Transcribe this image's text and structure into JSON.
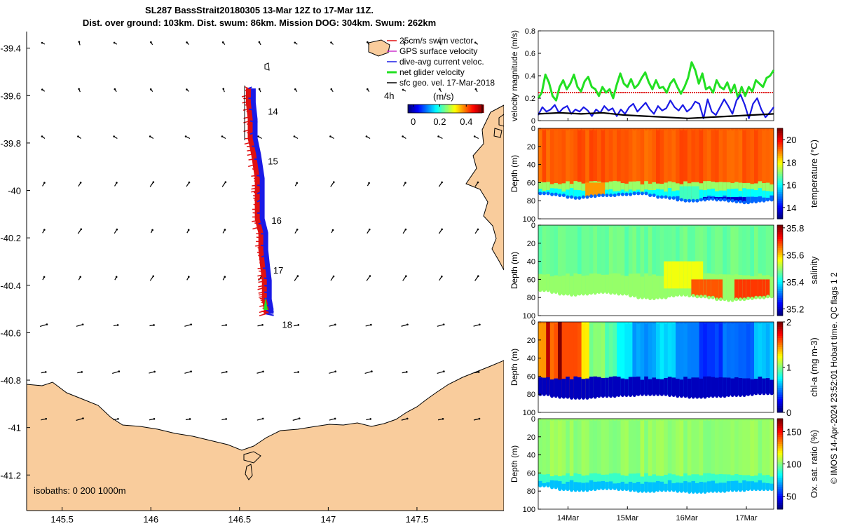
{
  "title": {
    "line1": "SL287 BassStrait20180305 13-Mar 12Z to 17-Mar 11Z.",
    "line2": "Dist. over ground: 103km. Dist. swum: 86km. Mission DOG: 304km. Swum: 262km"
  },
  "side_note": "© IMOS 14-Apr-2024 23:52:01 Hobart time. QC flags 1  2",
  "colors": {
    "land": "#f9cc9c",
    "swim": "#e01010",
    "dac": "#1a1ae6",
    "net": "#22e022",
    "ref": "#e01010",
    "gps": "#cc33cc",
    "sfc": "#000000"
  },
  "chart_data": [
    {
      "type": "map",
      "x_ticks": [
        "145.5",
        "146",
        "146.5",
        "147",
        "147.5"
      ],
      "x_values": [
        145.5,
        146,
        146.5,
        147,
        147.5
      ],
      "xlim": [
        145.3,
        147.99
      ],
      "y_ticks": [
        "-39.4",
        "-39.6",
        "-39.8",
        "-40",
        "-40.2",
        "-40.4",
        "-40.6",
        "-40.8",
        "-41",
        "-41.2"
      ],
      "y_values": [
        -39.4,
        -39.6,
        -39.8,
        -40.0,
        -40.2,
        -40.4,
        -40.6,
        -40.8,
        -41.0,
        -41.2
      ],
      "ylim": [
        -41.35,
        -39.33
      ],
      "day_labels": [
        {
          "text": "14",
          "lon": 146.66,
          "lat": -39.68
        },
        {
          "text": "15",
          "lon": 146.66,
          "lat": -39.89
        },
        {
          "text": "16",
          "lon": 146.68,
          "lat": -40.14
        },
        {
          "text": "17",
          "lon": 146.69,
          "lat": -40.35
        },
        {
          "text": "18",
          "lon": 146.74,
          "lat": -40.58
        }
      ],
      "track": {
        "lon": [
          146.55,
          146.55,
          146.56,
          146.56,
          146.58,
          146.6,
          146.6,
          146.6,
          146.6,
          146.62,
          146.62,
          146.63,
          146.64,
          146.64,
          146.64,
          146.65,
          146.65
        ],
        "lat": [
          -39.57,
          -39.63,
          -39.7,
          -39.78,
          -39.85,
          -39.95,
          -40.0,
          -40.05,
          -40.12,
          -40.18,
          -40.25,
          -40.32,
          -40.38,
          -40.42,
          -40.46,
          -40.5,
          -40.52
        ]
      },
      "legend": [
        "25cm/s swim vector",
        "GPS surface velocity",
        "dive-avg current veloc.",
        "net glider velocity",
        "sfc geo. vel. 17-Mar-2018"
      ],
      "legend_4h": "4h",
      "colorbar_title": "(m/s)",
      "colorbar_ticks": [
        "0",
        "0.2",
        "0.4"
      ],
      "colorbar_values": [
        0,
        0.2,
        0.4
      ],
      "colorbar_range": [
        -0.04,
        0.52
      ],
      "isobaths": "isobaths: 0   200  1000m"
    },
    {
      "type": "line",
      "ylabel": "velocity magnitude (m/s)",
      "ylim": [
        0,
        0.8
      ],
      "y_ticks": [
        "0",
        "0.2",
        "0.4",
        "0.6",
        "0.8"
      ],
      "y_values": [
        0,
        0.2,
        0.4,
        0.6,
        0.8
      ],
      "xlim": [
        13.5,
        17.46
      ],
      "series": [
        {
          "name": "net glider velocity",
          "values": [
            0.2,
            0.25,
            0.41,
            0.34,
            0.22,
            0.18,
            0.3,
            0.36,
            0.28,
            0.33,
            0.41,
            0.3,
            0.26,
            0.35,
            0.39,
            0.3,
            0.28,
            0.22,
            0.3,
            0.25,
            0.28,
            0.2,
            0.32,
            0.42,
            0.33,
            0.3,
            0.37,
            0.29,
            0.32,
            0.38,
            0.43,
            0.34,
            0.28,
            0.36,
            0.29,
            0.3,
            0.25,
            0.33,
            0.37,
            0.3,
            0.24,
            0.3,
            0.38,
            0.52,
            0.45,
            0.33,
            0.42,
            0.28,
            0.3,
            0.25,
            0.36,
            0.3,
            0.28,
            0.34,
            0.25,
            0.32,
            0.2,
            0.3,
            0.22,
            0.3,
            0.26,
            0.36,
            0.33,
            0.3,
            0.38,
            0.4,
            0.45
          ]
        },
        {
          "name": "dive-avg current veloc.",
          "values": [
            0.05,
            0.12,
            0.08,
            0.1,
            0.14,
            0.07,
            0.11,
            0.13,
            0.06,
            0.1,
            0.08,
            0.12,
            0.09,
            0.04,
            0.1,
            0.07,
            0.13,
            0.09,
            0.11,
            0.04,
            0.1,
            0.06,
            0.12,
            0.15,
            0.08,
            0.12,
            0.16,
            0.1,
            0.06,
            0.13,
            0.09,
            0.11,
            0.18,
            0.12,
            0.09,
            0.14,
            0.08,
            0.11,
            0.17,
            0.15,
            0.02,
            0.19,
            0.08,
            0.05,
            0.12,
            0.19,
            0.13,
            0.06,
            0.18,
            0.23,
            0.14,
            0.02,
            0.15,
            0.2,
            0.1,
            0.03,
            0.07,
            0.12
          ]
        },
        {
          "name": "sfc geo. vel.",
          "values": [
            0.06,
            0.07,
            0.06,
            0.07,
            0.05,
            0.04,
            0.03,
            0.02,
            0.03,
            0.04,
            0.05,
            0.06
          ]
        }
      ],
      "reference_line": 0.25
    },
    {
      "type": "heatmap",
      "ylabel": "Depth (m)",
      "ylim": [
        0,
        100
      ],
      "y_ticks": [
        "0",
        "20",
        "40",
        "60",
        "80",
        "100"
      ],
      "y_values": [
        0,
        20,
        40,
        60,
        80,
        100
      ],
      "colorbar_label": "temperature (°C)",
      "colorbar_ticks": [
        "14",
        "16",
        "18",
        "20"
      ],
      "colorbar_values": [
        14,
        16,
        18,
        20
      ],
      "crange": [
        13,
        21
      ],
      "surface_value": 19.3,
      "floor_depths": [
        72,
        73,
        74,
        76,
        77,
        76,
        75,
        74,
        74,
        73,
        73,
        72,
        72,
        74,
        76,
        77,
        79,
        80,
        80,
        79,
        78,
        79,
        80,
        81,
        82,
        81,
        80,
        79
      ],
      "layers": [
        {
          "top": 60,
          "value": 17.2
        },
        {
          "top": 68,
          "value": 16.0
        },
        {
          "top": 76,
          "value": 14.8
        }
      ],
      "patches": [
        {
          "x0": 14.3,
          "x1": 14.6,
          "top": 60,
          "value": 18.8
        },
        {
          "x0": 15.9,
          "x1": 16.2,
          "top": 64,
          "value": 16.5
        },
        {
          "x0": 16.3,
          "x1": 17.0,
          "top": 76,
          "value": 13.6
        }
      ]
    },
    {
      "type": "heatmap",
      "ylabel": "Depth (m)",
      "ylim": [
        0,
        100
      ],
      "y_ticks": [
        "0",
        "20",
        "40",
        "60",
        "80",
        "100"
      ],
      "y_values": [
        0,
        20,
        40,
        60,
        80,
        100
      ],
      "colorbar_label": "salinity",
      "colorbar_ticks": [
        "35.2",
        "35.4",
        "35.6",
        "35.8"
      ],
      "colorbar_values": [
        35.2,
        35.4,
        35.6,
        35.8
      ],
      "crange": [
        35.15,
        35.82
      ],
      "surface_value": 35.47,
      "floor_depths": [
        72,
        74,
        76,
        77,
        76,
        75,
        74,
        75,
        76,
        78,
        80,
        81,
        80,
        78,
        77,
        78,
        79,
        80,
        82,
        83,
        82,
        81,
        80,
        79
      ],
      "layers": [
        {
          "top": 55,
          "value": 35.5
        }
      ],
      "patches": [
        {
          "x0": 15.6,
          "x1": 16.3,
          "top": 40,
          "value": 35.56
        },
        {
          "x0": 16.1,
          "x1": 16.6,
          "top": 60,
          "value": 35.68
        },
        {
          "x0": 16.8,
          "x1": 17.4,
          "top": 60,
          "value": 35.7
        }
      ]
    },
    {
      "type": "heatmap",
      "ylabel": "Depth (m)",
      "ylim": [
        0,
        100
      ],
      "y_ticks": [
        "0",
        "20",
        "40",
        "60",
        "80",
        "100"
      ],
      "y_values": [
        0,
        20,
        40,
        60,
        80,
        100
      ],
      "colorbar_label": "chl-a (mg m-3)",
      "colorbar_ticks": [
        "0",
        "1",
        "2"
      ],
      "colorbar_values": [
        0,
        1,
        2
      ],
      "crange": [
        0,
        2
      ],
      "surface_value": 0.9,
      "floor_depths": [
        80,
        82,
        83,
        84,
        84,
        83,
        82,
        82,
        81,
        81,
        80,
        80,
        80,
        81,
        82,
        83,
        83,
        82,
        82,
        81,
        81,
        80,
        79,
        79
      ],
      "layers": [
        {
          "top": 62,
          "value": 0.12
        }
      ],
      "columns": [
        {
          "x0": 13.5,
          "x1": 13.62,
          "value": 1.5
        },
        {
          "x0": 13.62,
          "x1": 13.7,
          "value": 1.9
        },
        {
          "x0": 13.7,
          "x1": 13.8,
          "value": 1.55
        },
        {
          "x0": 13.8,
          "x1": 13.9,
          "value": 2.0
        },
        {
          "x0": 13.9,
          "x1": 14.25,
          "value": 1.6
        },
        {
          "x0": 14.25,
          "x1": 14.35,
          "value": 1.25
        },
        {
          "x0": 14.35,
          "x1": 14.6,
          "value": 1.0
        },
        {
          "x0": 14.6,
          "x1": 14.8,
          "value": 0.9
        },
        {
          "x0": 14.8,
          "x1": 15.1,
          "value": 0.75
        },
        {
          "x0": 15.1,
          "x1": 15.5,
          "value": 0.55
        },
        {
          "x0": 15.5,
          "x1": 15.8,
          "value": 0.7
        },
        {
          "x0": 15.8,
          "x1": 16.2,
          "value": 0.5
        },
        {
          "x0": 16.2,
          "x1": 16.6,
          "value": 0.35
        },
        {
          "x0": 16.6,
          "x1": 17.1,
          "value": 0.45
        },
        {
          "x0": 17.1,
          "x1": 17.46,
          "value": 0.62
        }
      ]
    },
    {
      "type": "heatmap",
      "ylabel": "Depth (m)",
      "ylim": [
        0,
        100
      ],
      "y_ticks": [
        "0",
        "20",
        "40",
        "60",
        "80",
        "100"
      ],
      "y_values": [
        0,
        20,
        40,
        60,
        80,
        100
      ],
      "x_ticks": [
        "14Mar",
        "15Mar",
        "16Mar",
        "17Mar"
      ],
      "x_values": [
        14,
        15,
        16,
        17
      ],
      "xlim": [
        13.5,
        17.46
      ],
      "colorbar_label": "Ox. sat. ratio (%)",
      "colorbar_ticks": [
        "50",
        "100",
        "150"
      ],
      "colorbar_values": [
        50,
        100,
        150
      ],
      "crange": [
        30,
        170
      ],
      "surface_value": 103,
      "floor_depths": [
        74,
        76,
        78,
        79,
        79,
        78,
        77,
        77,
        78,
        79,
        80,
        80,
        79,
        79,
        80,
        81,
        81,
        80,
        80,
        79,
        79,
        78,
        78,
        78
      ],
      "layers": [
        {
          "top": 62,
          "value": 90
        },
        {
          "top": 70,
          "value": 74
        }
      ]
    }
  ]
}
